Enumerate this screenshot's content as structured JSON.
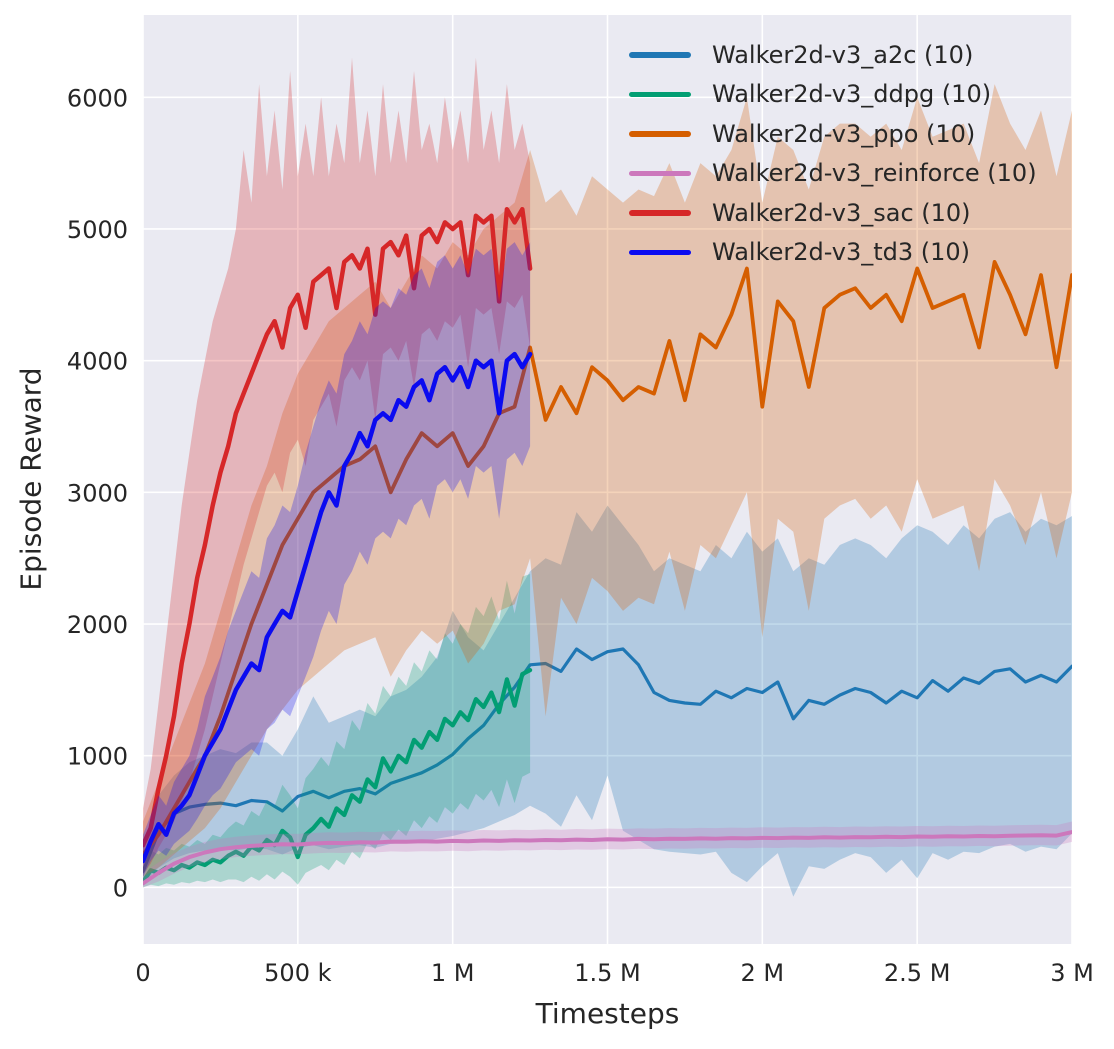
{
  "chart_data": {
    "type": "line",
    "title": "",
    "xlabel": "Timesteps",
    "ylabel": "Episode Reward",
    "xlim": [
      0,
      3000000
    ],
    "ylim": [
      -430,
      6625
    ],
    "grid": true,
    "background": "#eaeaf2",
    "grid_color": "#ffffff",
    "text_color": "#262626",
    "band_opacity": 0.27,
    "legend_position": "upper right",
    "xticks": [
      {
        "value": 0,
        "label": "0"
      },
      {
        "value": 500000,
        "label": "500 k"
      },
      {
        "value": 1000000,
        "label": "1 M"
      },
      {
        "value": 1500000,
        "label": "1.5 M"
      },
      {
        "value": 2000000,
        "label": "2 M"
      },
      {
        "value": 2500000,
        "label": "2.5 M"
      },
      {
        "value": 3000000,
        "label": "3 M"
      }
    ],
    "yticks": [
      {
        "value": 0,
        "label": "0"
      },
      {
        "value": 1000,
        "label": "1000"
      },
      {
        "value": 2000,
        "label": "2000"
      },
      {
        "value": 3000,
        "label": "3000"
      },
      {
        "value": 4000,
        "label": "4000"
      },
      {
        "value": 5000,
        "label": "5000"
      },
      {
        "value": 6000,
        "label": "6000"
      }
    ],
    "series": [
      {
        "key": "a2c",
        "name": "Walker2d-v3_a2c (10)",
        "color": "#1f77b4",
        "line_width": 3.2,
        "x_start": 0,
        "x_step": 50000,
        "mean": [
          120,
          420,
          560,
          610,
          630,
          640,
          620,
          660,
          650,
          580,
          690,
          730,
          680,
          730,
          750,
          710,
          790,
          830,
          870,
          930,
          1010,
          1130,
          1230,
          1390,
          1520,
          1690,
          1700,
          1640,
          1810,
          1730,
          1790,
          1810,
          1690,
          1480,
          1420,
          1400,
          1390,
          1490,
          1440,
          1510,
          1480,
          1560,
          1280,
          1420,
          1390,
          1460,
          1510,
          1480,
          1400,
          1490,
          1440,
          1570,
          1490,
          1590,
          1550,
          1640,
          1660,
          1560,
          1610,
          1560,
          1680
        ],
        "lower": [
          30,
          150,
          220,
          260,
          280,
          290,
          280,
          300,
          290,
          250,
          300,
          320,
          290,
          310,
          320,
          300,
          330,
          340,
          350,
          370,
          390,
          420,
          450,
          500,
          550,
          620,
          560,
          460,
          700,
          510,
          850,
          430,
          360,
          290,
          270,
          260,
          250,
          270,
          110,
          40,
          160,
          260,
          -70,
          160,
          140,
          210,
          260,
          230,
          110,
          210,
          70,
          260,
          210,
          270,
          260,
          310,
          330,
          270,
          310,
          290,
          410
        ],
        "upper": [
          300,
          700,
          850,
          950,
          1000,
          1050,
          1020,
          1100,
          1100,
          1000,
          1200,
          1450,
          1250,
          1300,
          1350,
          1300,
          1450,
          1500,
          1600,
          1750,
          2100,
          1900,
          1800,
          2000,
          2200,
          2400,
          2500,
          2450,
          2850,
          2700,
          2900,
          2750,
          2600,
          2400,
          2500,
          2450,
          2400,
          2600,
          2500,
          2700,
          2550,
          2650,
          2400,
          2500,
          2450,
          2600,
          2650,
          2600,
          2500,
          2650,
          2750,
          2700,
          2600,
          2750,
          2650,
          2800,
          2850,
          2700,
          2800,
          2750,
          2820
        ]
      },
      {
        "key": "ddpg",
        "name": "Walker2d-v3_ddpg (10)",
        "color": "#029e73",
        "line_width": 4.2,
        "x_start": 0,
        "x_step": 25000,
        "mean": [
          40,
          130,
          110,
          150,
          130,
          170,
          150,
          190,
          170,
          210,
          190,
          240,
          270,
          240,
          310,
          280,
          360,
          320,
          430,
          380,
          230,
          400,
          450,
          520,
          460,
          600,
          550,
          700,
          650,
          820,
          760,
          980,
          880,
          1000,
          950,
          1120,
          1060,
          1180,
          1120,
          1280,
          1230,
          1330,
          1270,
          1430,
          1370,
          1480,
          1330,
          1580,
          1380,
          1620,
          1650
        ],
        "lower": [
          0,
          20,
          10,
          30,
          20,
          40,
          30,
          50,
          40,
          60,
          40,
          60,
          60,
          40,
          80,
          50,
          100,
          60,
          120,
          80,
          20,
          110,
          140,
          170,
          130,
          210,
          170,
          270,
          220,
          340,
          290,
          410,
          360,
          440,
          390,
          510,
          450,
          540,
          490,
          610,
          560,
          640,
          590,
          710,
          660,
          740,
          610,
          820,
          640,
          840,
          870
        ],
        "upper": [
          150,
          280,
          250,
          300,
          280,
          330,
          310,
          360,
          330,
          400,
          380,
          450,
          500,
          470,
          580,
          540,
          660,
          620,
          780,
          700,
          600,
          830,
          900,
          990,
          920,
          1110,
          1050,
          1270,
          1190,
          1400,
          1320,
          1530,
          1450,
          1600,
          1530,
          1710,
          1640,
          1800,
          1730,
          1930,
          1850,
          2000,
          1930,
          2130,
          2060,
          2210,
          2030,
          2330,
          2080,
          2360,
          2380
        ]
      },
      {
        "key": "ppo",
        "name": "Walker2d-v3_ppo (10)",
        "color": "#d55e00",
        "line_width": 3.8,
        "x_start": 0,
        "x_step": 50000,
        "mean": [
          250,
          400,
          600,
          800,
          1000,
          1300,
          1650,
          2000,
          2300,
          2600,
          2800,
          3000,
          3100,
          3200,
          3250,
          3350,
          3000,
          3250,
          3450,
          3350,
          3450,
          3200,
          3350,
          3600,
          3650,
          4100,
          3550,
          3800,
          3600,
          3950,
          3850,
          3700,
          3800,
          3750,
          4150,
          3700,
          4200,
          4100,
          4350,
          4700,
          3650,
          4450,
          4300,
          3800,
          4400,
          4500,
          4550,
          4400,
          4500,
          4300,
          4700,
          4400,
          4450,
          4500,
          4100,
          4750,
          4500,
          4200,
          4650,
          3950,
          4650
        ],
        "lower": [
          80,
          150,
          250,
          350,
          450,
          600,
          800,
          1000,
          1200,
          1350,
          1500,
          1600,
          1700,
          1800,
          1850,
          1900,
          1600,
          1800,
          1950,
          1850,
          1950,
          1700,
          1850,
          2100,
          2150,
          2500,
          1300,
          2200,
          2000,
          2350,
          2250,
          2100,
          2200,
          2150,
          2550,
          2100,
          2600,
          2500,
          2750,
          3000,
          1900,
          2800,
          2700,
          2100,
          2800,
          2900,
          2950,
          2800,
          2900,
          2700,
          3100,
          2800,
          2850,
          2900,
          2400,
          3100,
          2900,
          2600,
          3000,
          2500,
          3000
        ],
        "upper": [
          500,
          800,
          1100,
          1400,
          1700,
          2100,
          2500,
          2900,
          3200,
          3600,
          3900,
          4100,
          4300,
          4400,
          4500,
          4600,
          4400,
          4600,
          4800,
          4700,
          4900,
          4800,
          5000,
          5100,
          5200,
          5600,
          5200,
          5300,
          5100,
          5400,
          5300,
          5200,
          5300,
          5250,
          5500,
          5200,
          5500,
          5400,
          5600,
          6000,
          5200,
          5700,
          5600,
          5300,
          5700,
          5800,
          5800,
          5700,
          5800,
          5600,
          6000,
          5700,
          5750,
          5800,
          5500,
          6100,
          5800,
          5600,
          5900,
          5400,
          5900
        ]
      },
      {
        "key": "reinforce",
        "name": "Walker2d-v3_reinforce (10)",
        "color": "#cc78bc",
        "line_width": 4,
        "x_start": 0,
        "x_step": 50000,
        "mean": [
          30,
          110,
          180,
          230,
          265,
          290,
          305,
          315,
          322,
          328,
          326,
          333,
          338,
          336,
          343,
          340,
          348,
          346,
          350,
          348,
          353,
          350,
          356,
          353,
          358,
          356,
          360,
          358,
          363,
          360,
          366,
          363,
          368,
          366,
          370,
          368,
          372,
          370,
          374,
          372,
          376,
          374,
          378,
          376,
          380,
          378,
          382,
          380,
          384,
          382,
          386,
          384,
          388,
          386,
          390,
          388,
          392,
          394,
          396,
          393,
          420
        ],
        "lower": [
          0,
          45,
          105,
          155,
          190,
          215,
          230,
          240,
          247,
          253,
          251,
          258,
          263,
          261,
          268,
          265,
          273,
          271,
          275,
          273,
          278,
          275,
          281,
          278,
          283,
          281,
          285,
          283,
          288,
          285,
          291,
          288,
          293,
          291,
          295,
          293,
          297,
          295,
          299,
          297,
          301,
          299,
          303,
          301,
          305,
          303,
          307,
          305,
          309,
          307,
          311,
          309,
          313,
          311,
          315,
          313,
          317,
          319,
          321,
          318,
          345
        ],
        "upper": [
          110,
          190,
          260,
          310,
          345,
          370,
          385,
          395,
          402,
          408,
          406,
          413,
          418,
          416,
          423,
          420,
          428,
          426,
          430,
          428,
          433,
          430,
          436,
          433,
          438,
          436,
          440,
          438,
          443,
          440,
          446,
          443,
          448,
          446,
          450,
          448,
          452,
          450,
          454,
          452,
          456,
          454,
          458,
          456,
          460,
          458,
          462,
          460,
          464,
          462,
          466,
          464,
          468,
          466,
          470,
          468,
          472,
          474,
          476,
          473,
          500
        ]
      },
      {
        "key": "sac",
        "name": "Walker2d-v3_sac (10)",
        "color": "#d62728",
        "line_width": 4.5,
        "x_start": 0,
        "x_step": 25000,
        "mean": [
          320,
          450,
          750,
          1000,
          1300,
          1700,
          2000,
          2350,
          2600,
          2900,
          3150,
          3350,
          3600,
          3750,
          3900,
          4050,
          4200,
          4300,
          4100,
          4400,
          4500,
          4250,
          4600,
          4650,
          4700,
          4400,
          4750,
          4800,
          4700,
          4850,
          4350,
          4850,
          4900,
          4800,
          4950,
          4550,
          4950,
          5000,
          4900,
          5050,
          5000,
          5050,
          4650,
          5100,
          5050,
          5100,
          4450,
          5150,
          5050,
          5150,
          4700
        ],
        "lower": [
          100,
          180,
          300,
          400,
          500,
          650,
          800,
          1000,
          1200,
          1450,
          1700,
          1950,
          2200,
          2450,
          2650,
          2850,
          3050,
          3150,
          3000,
          3300,
          3400,
          3200,
          3550,
          3650,
          3750,
          3500,
          3850,
          3950,
          3850,
          4000,
          3550,
          4050,
          4100,
          4000,
          4150,
          3800,
          4200,
          4250,
          4150,
          4300,
          4250,
          4350,
          3950,
          4400,
          4350,
          4400,
          4050,
          4450,
          4400,
          4500,
          4100
        ],
        "upper": [
          600,
          900,
          1400,
          1900,
          2400,
          2900,
          3300,
          3700,
          4000,
          4300,
          4500,
          4700,
          5000,
          5600,
          5200,
          6100,
          5400,
          5900,
          5300,
          6200,
          5400,
          5800,
          5400,
          6000,
          5400,
          5800,
          5500,
          6300,
          5500,
          5900,
          5400,
          6100,
          5500,
          5900,
          5500,
          6200,
          5600,
          5800,
          5500,
          6000,
          5600,
          5900,
          5500,
          6300,
          5600,
          5900,
          5500,
          6100,
          5600,
          5800,
          5500
        ],
        "note": "runs end at 1.25M timesteps"
      },
      {
        "key": "td3",
        "name": "Walker2d-v3_td3 (10)",
        "color": "#0b0bf0",
        "line_width": 4.5,
        "x_start": 0,
        "x_step": 25000,
        "mean": [
          200,
          350,
          480,
          400,
          560,
          620,
          700,
          850,
          1000,
          1100,
          1200,
          1350,
          1500,
          1600,
          1700,
          1650,
          1900,
          2000,
          2100,
          2050,
          2250,
          2450,
          2650,
          2850,
          3000,
          2900,
          3200,
          3300,
          3450,
          3350,
          3550,
          3600,
          3550,
          3700,
          3650,
          3800,
          3850,
          3700,
          3900,
          3950,
          3850,
          3950,
          3800,
          4000,
          3950,
          4000,
          3600,
          4000,
          4050,
          3950,
          4050
        ],
        "lower": [
          80,
          200,
          280,
          240,
          330,
          380,
          430,
          520,
          620,
          700,
          750,
          850,
          950,
          1000,
          1050,
          1000,
          1200,
          1250,
          1350,
          1300,
          1450,
          1600,
          1750,
          1950,
          2100,
          2000,
          2300,
          2400,
          2550,
          2450,
          2650,
          2700,
          2650,
          2800,
          2750,
          2900,
          2950,
          2800,
          3050,
          3100,
          3000,
          3100,
          2950,
          3200,
          3150,
          3200,
          2800,
          3250,
          3300,
          3200,
          3350
        ],
        "upper": [
          400,
          550,
          700,
          620,
          800,
          900,
          1000,
          1200,
          1450,
          1600,
          1750,
          1950,
          2100,
          2250,
          2400,
          2350,
          2650,
          2750,
          2900,
          2850,
          3050,
          3300,
          3500,
          3700,
          3850,
          3750,
          4050,
          4150,
          4300,
          4200,
          4400,
          4450,
          4400,
          4550,
          4500,
          4650,
          4700,
          4550,
          4750,
          4800,
          4700,
          4800,
          4650,
          4850,
          4800,
          4850,
          4450,
          4850,
          4900,
          4800,
          4900
        ],
        "note": "runs end at 1.25M timesteps"
      }
    ]
  }
}
